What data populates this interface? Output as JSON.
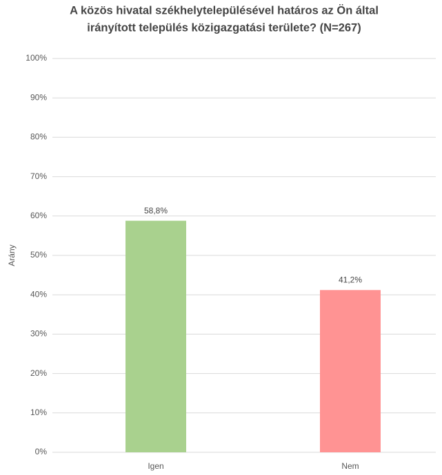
{
  "chart_data": {
    "type": "bar",
    "title": [
      "A közös hivatal székhelytelepülésével határos az Ön által",
      "irányított település közigazgatási területe? (N=267)"
    ],
    "y_label": "Arány",
    "categories": [
      "Igen",
      "Nem"
    ],
    "values": [
      58.8,
      41.2
    ],
    "value_labels": [
      "58,8%",
      "41,2%"
    ],
    "colors": [
      "#a9d18e",
      "#ff9393"
    ],
    "ylim": [
      0,
      100
    ],
    "yticks": [
      {
        "value": 0,
        "label": "0%"
      },
      {
        "value": 10,
        "label": "10%"
      },
      {
        "value": 20,
        "label": "20%"
      },
      {
        "value": 30,
        "label": "30%"
      },
      {
        "value": 40,
        "label": "40%"
      },
      {
        "value": 50,
        "label": "50%"
      },
      {
        "value": 60,
        "label": "60%"
      },
      {
        "value": 70,
        "label": "70%"
      },
      {
        "value": 80,
        "label": "80%"
      },
      {
        "value": 90,
        "label": "90%"
      },
      {
        "value": 100,
        "label": "100%"
      }
    ],
    "grid": true
  }
}
